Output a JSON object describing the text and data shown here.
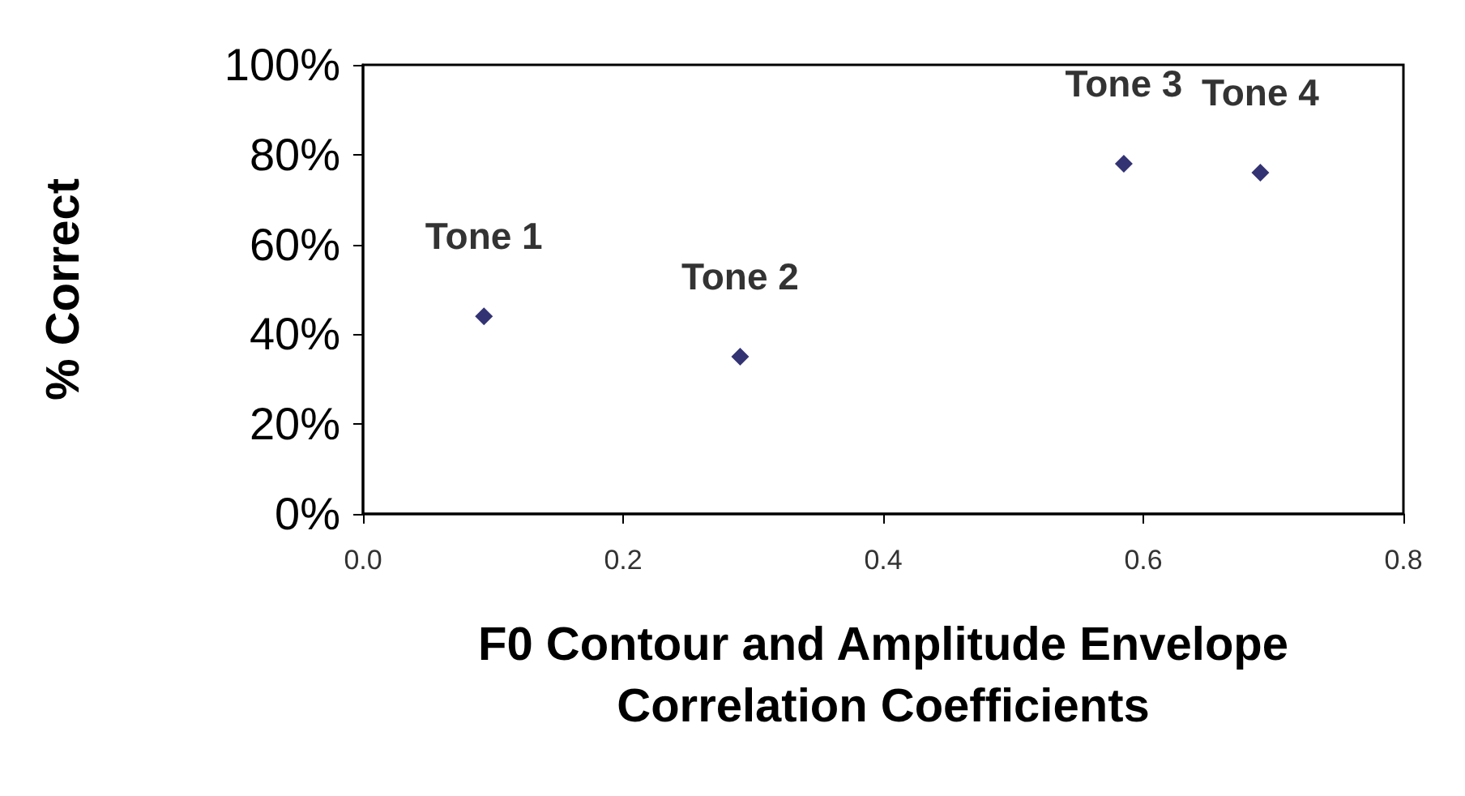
{
  "chart_data": {
    "type": "scatter",
    "xlabel": "F0 Contour and Amplitude Envelope\nCorrelation Coefficients",
    "ylabel": "% Correct",
    "x": [
      0.093,
      0.29,
      0.585,
      0.69
    ],
    "values": [
      44,
      35,
      78,
      76
    ],
    "color": "#000050",
    "marker": "diamond",
    "xlim": [
      0,
      0.8
    ],
    "xticks": [
      {
        "value": 0,
        "label": "0.0"
      },
      {
        "value": 0.2,
        "label": "0.2"
      },
      {
        "value": 0.4,
        "label": "0.4"
      },
      {
        "value": 0.6,
        "label": "0.6"
      },
      {
        "value": 0.8,
        "label": "0.8"
      }
    ],
    "ylim": [
      0,
      100
    ],
    "yticks": [
      {
        "value": 0,
        "label": "0%"
      },
      {
        "value": 20,
        "label": "20%"
      },
      {
        "value": 40,
        "label": "40%"
      },
      {
        "value": 60,
        "label": "60%"
      },
      {
        "value": 80,
        "label": "80%"
      },
      {
        "value": 100,
        "label": "100%"
      }
    ],
    "grid": false,
    "annotations": [
      {
        "text": "Tone 1",
        "x": 0.093,
        "y": 44
      },
      {
        "text": "Tone 2",
        "x": 0.29,
        "y": 35
      },
      {
        "text": "Tone 3",
        "x": 0.585,
        "y": 78
      },
      {
        "text": "Tone 4",
        "x": 0.69,
        "y": 76
      }
    ]
  }
}
